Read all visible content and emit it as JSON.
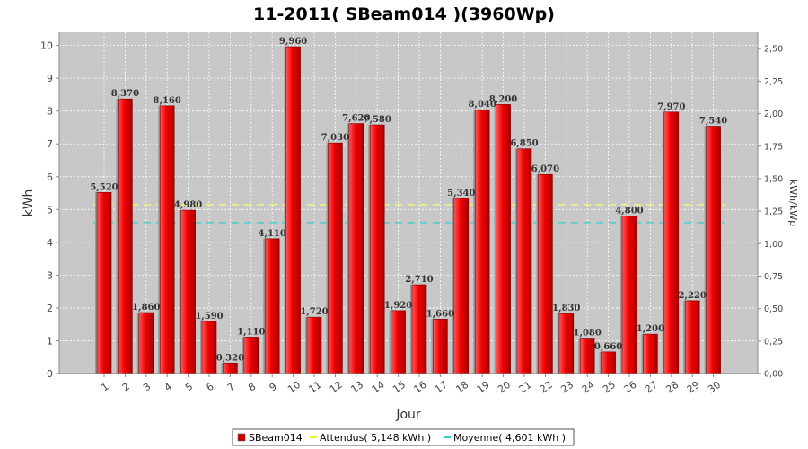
{
  "chart_data": {
    "type": "bar",
    "title": "11-2011( SBeam014 )(3960Wp)",
    "xlabel": "Jour",
    "ylabel": "kWh",
    "ylabel_right": "kWh/kWp",
    "ylim": [
      0,
      10.4
    ],
    "ylim_right": [
      0,
      2.626
    ],
    "yticks": [
      0,
      1,
      2,
      3,
      4,
      5,
      6,
      7,
      8,
      9,
      10
    ],
    "yticks_right": [
      "0,00",
      "0,25",
      "0,50",
      "0,75",
      "1,00",
      "1,25",
      "1,50",
      "1,75",
      "2,00",
      "2,25",
      "2,50"
    ],
    "grid": true,
    "legend_position": "bottom",
    "categories": [
      "1",
      "2",
      "3",
      "4",
      "5",
      "6",
      "7",
      "8",
      "9",
      "10",
      "11",
      "12",
      "13",
      "14",
      "15",
      "16",
      "17",
      "18",
      "19",
      "20",
      "21",
      "22",
      "23",
      "24",
      "25",
      "26",
      "27",
      "28",
      "29",
      "30"
    ],
    "series": [
      {
        "name": "SBeam014",
        "color": "#dd0000",
        "values": [
          5.52,
          8.37,
          1.86,
          8.16,
          4.98,
          1.59,
          0.32,
          1.11,
          4.11,
          9.96,
          1.72,
          7.03,
          7.62,
          7.58,
          1.92,
          2.71,
          1.66,
          5.34,
          8.04,
          8.2,
          6.85,
          6.07,
          1.83,
          1.08,
          0.66,
          4.8,
          1.2,
          7.97,
          2.22,
          7.54
        ],
        "labels": [
          "5,520",
          "8,370",
          "1,860",
          "8,160",
          "4,980",
          "1,590",
          "0,320",
          "1,110",
          "4,110",
          "9,960",
          "1,720",
          "7,030",
          "7,620",
          "7,580",
          "1,920",
          "2,710",
          "1,660",
          "5,340",
          "8,040",
          "8,200",
          "6,850",
          "6,070",
          "1,830",
          "1,080",
          "0,660",
          "4,800",
          "1,200",
          "7,970",
          "2,220",
          "7,540"
        ]
      }
    ],
    "reference_lines": [
      {
        "name": "Attendus( 5,148 kWh )",
        "value": 5.148,
        "color": "#ffff66",
        "style": "dashed"
      },
      {
        "name": "Moyenne( 4,601 kWh )",
        "value": 4.601,
        "color": "#33cccc",
        "style": "dashed"
      }
    ]
  }
}
